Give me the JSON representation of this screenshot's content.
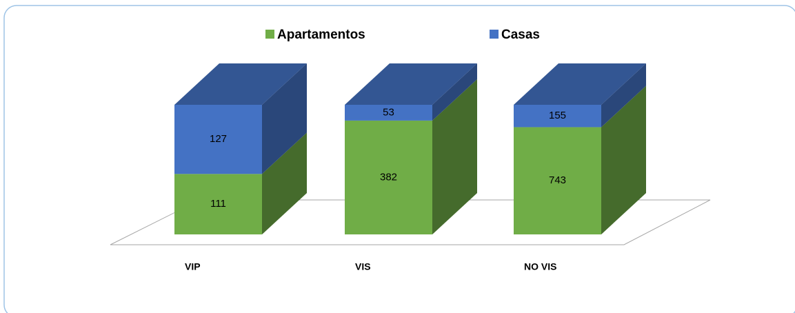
{
  "chart_data": {
    "type": "bar",
    "stacking": "percent",
    "categories": [
      "VIP",
      "VIS",
      "NO VIS"
    ],
    "series": [
      {
        "name": "Apartamentos",
        "color": "#70ad47",
        "values": [
          111,
          382,
          743
        ]
      },
      {
        "name": "Casas",
        "color": "#4472c4",
        "values": [
          127,
          53,
          155
        ]
      }
    ]
  }
}
